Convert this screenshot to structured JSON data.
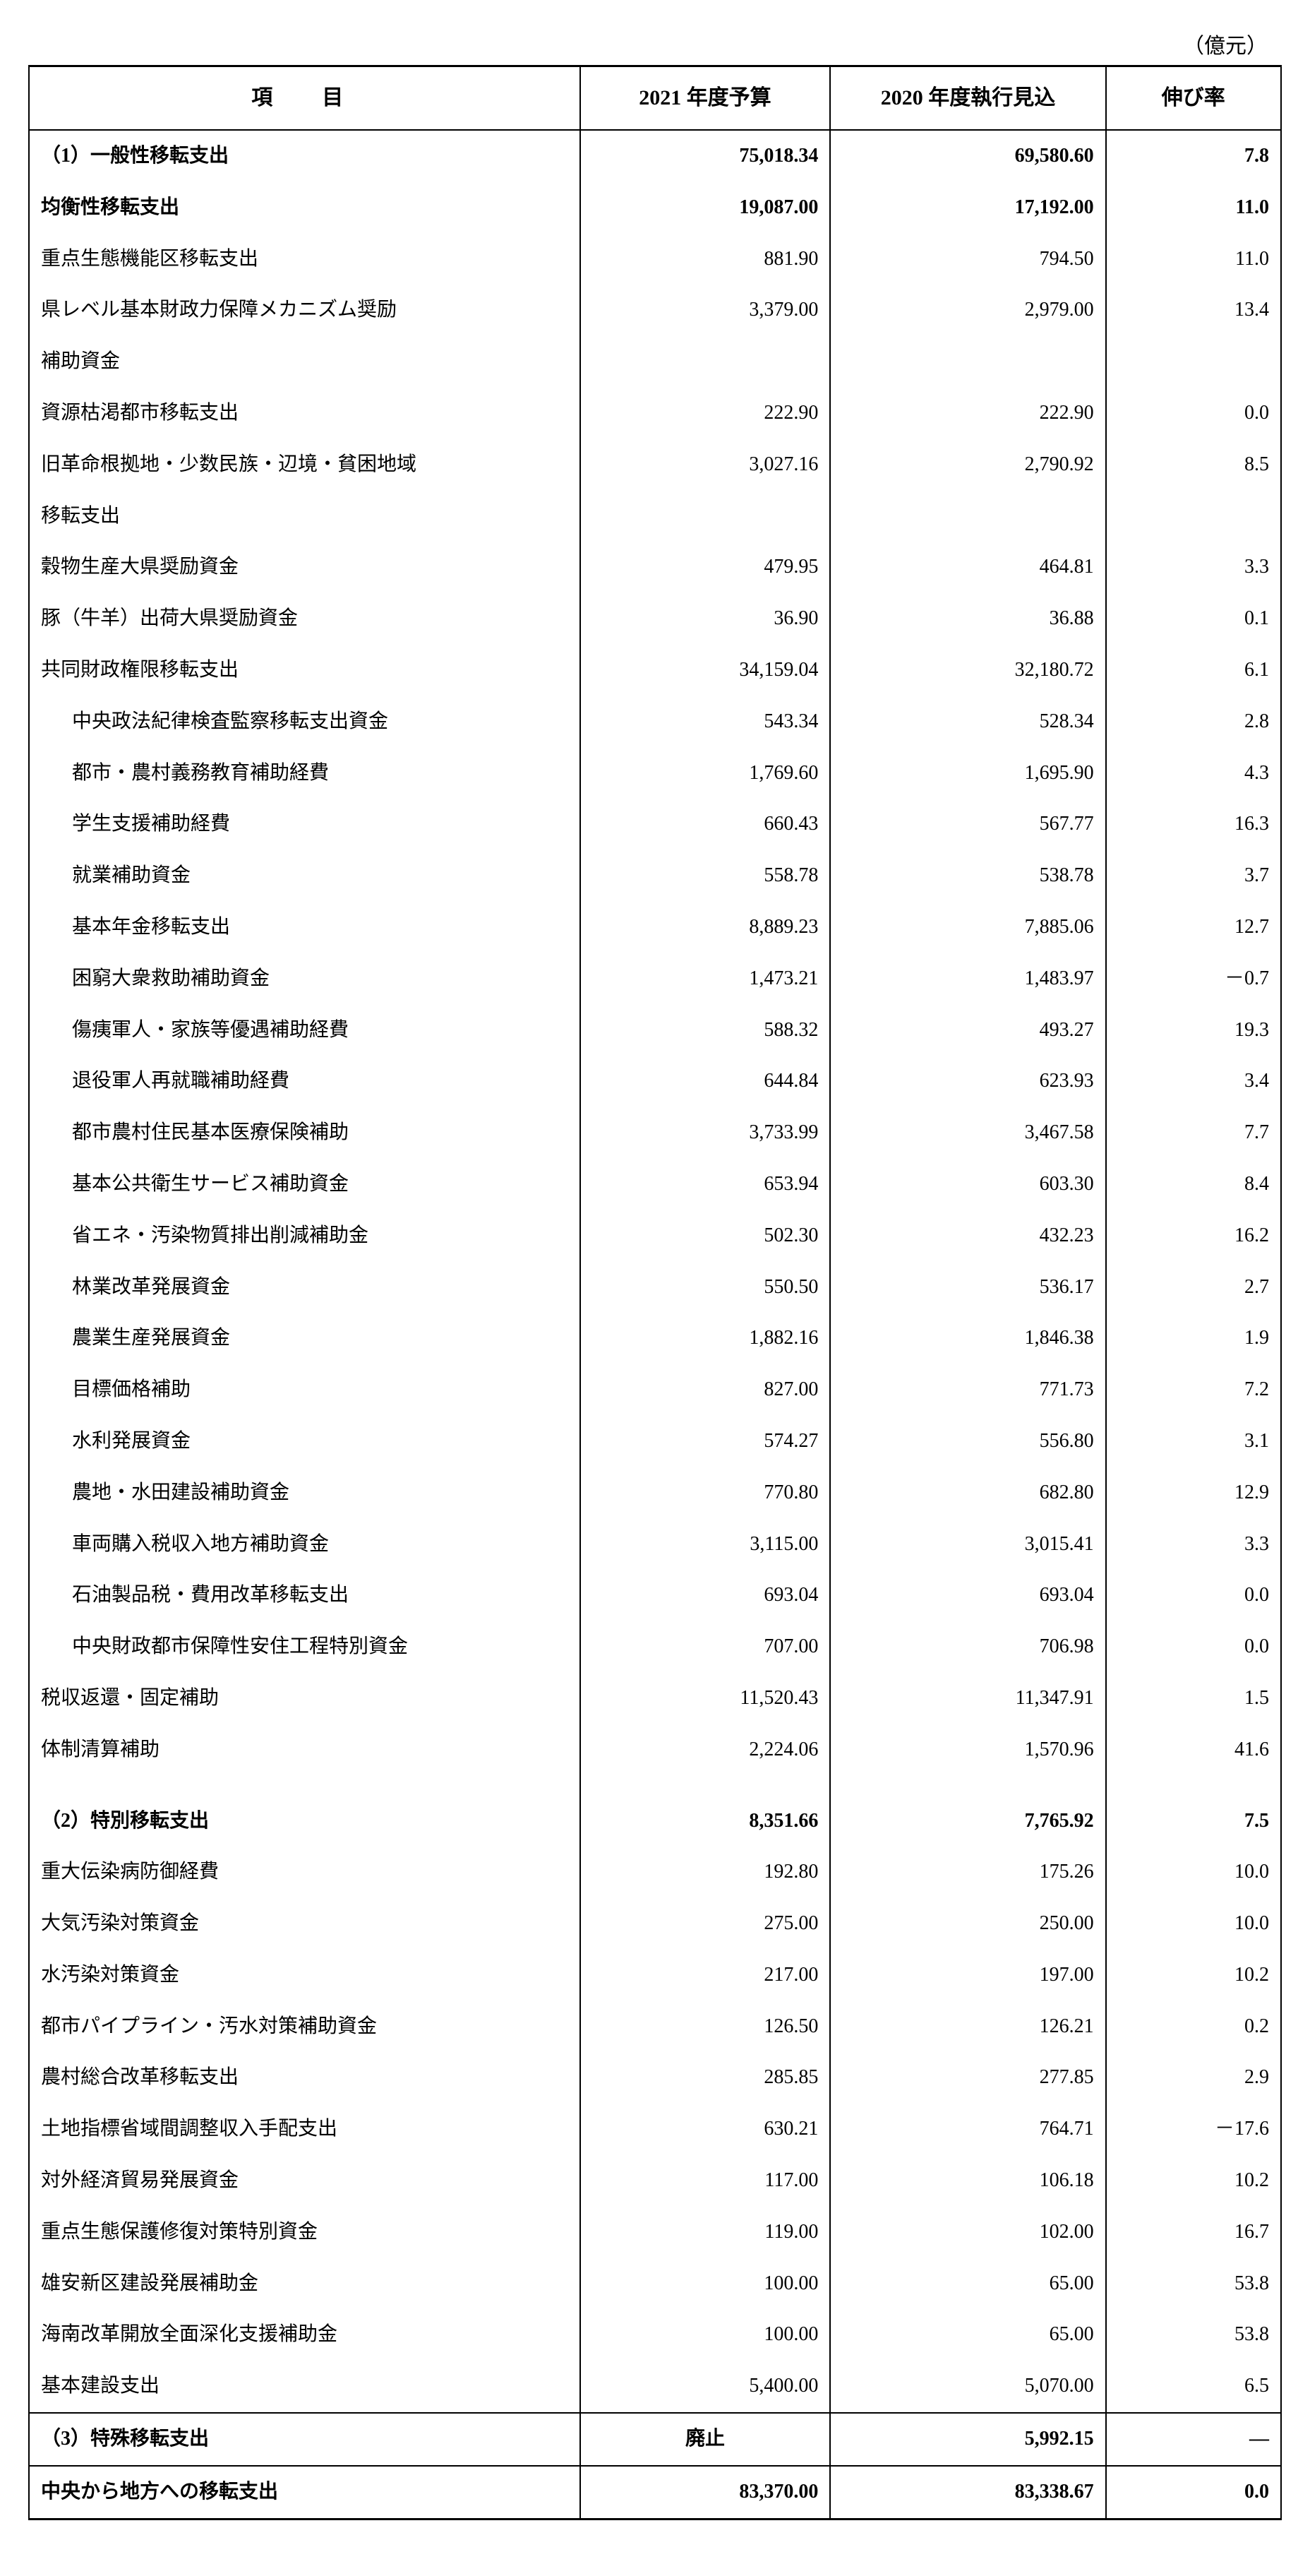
{
  "unit_label": "（億元）",
  "headers": {
    "item": "項　目",
    "budget_2021": "2021 年度予算",
    "exec_2020": "2020 年度執行見込",
    "growth": "伸び率"
  },
  "rows": [
    {
      "item": "（1）一般性移転支出",
      "b2021": "75,018.34",
      "e2020": "69,580.60",
      "rate": "7.8",
      "bold": true,
      "indent": 0,
      "section_top": true
    },
    {
      "item": "均衡性移転支出",
      "b2021": "19,087.00",
      "e2020": "17,192.00",
      "rate": "11.0",
      "bold": true,
      "indent": 0
    },
    {
      "item": "重点生態機能区移転支出",
      "b2021": "881.90",
      "e2020": "794.50",
      "rate": "11.0",
      "indent": 0
    },
    {
      "item": "県レベル基本財政力保障メカニズム奨励",
      "b2021": "3,379.00",
      "e2020": "2,979.00",
      "rate": "13.4",
      "indent": 0
    },
    {
      "item": "補助資金",
      "b2021": "",
      "e2020": "",
      "rate": "",
      "indent": 0
    },
    {
      "item": "資源枯渇都市移転支出",
      "b2021": "222.90",
      "e2020": "222.90",
      "rate": "0.0",
      "indent": 0
    },
    {
      "item": "旧革命根拠地・少数民族・辺境・貧困地域",
      "b2021": "3,027.16",
      "e2020": "2,790.92",
      "rate": "8.5",
      "indent": 0
    },
    {
      "item": "移転支出",
      "b2021": "",
      "e2020": "",
      "rate": "",
      "indent": 0
    },
    {
      "item": "穀物生産大県奨励資金",
      "b2021": "479.95",
      "e2020": "464.81",
      "rate": "3.3",
      "indent": 0
    },
    {
      "item": "豚（牛羊）出荷大県奨励資金",
      "b2021": "36.90",
      "e2020": "36.88",
      "rate": "0.1",
      "indent": 0
    },
    {
      "item": "共同財政権限移転支出",
      "b2021": "34,159.04",
      "e2020": "32,180.72",
      "rate": "6.1",
      "indent": 0
    },
    {
      "item": "中央政法紀律検査監察移転支出資金",
      "b2021": "543.34",
      "e2020": "528.34",
      "rate": "2.8",
      "indent": 2
    },
    {
      "item": "都市・農村義務教育補助経費",
      "b2021": "1,769.60",
      "e2020": "1,695.90",
      "rate": "4.3",
      "indent": 2
    },
    {
      "item": "学生支援補助経費",
      "b2021": "660.43",
      "e2020": "567.77",
      "rate": "16.3",
      "indent": 2
    },
    {
      "item": "就業補助資金",
      "b2021": "558.78",
      "e2020": "538.78",
      "rate": "3.7",
      "indent": 2
    },
    {
      "item": "基本年金移転支出",
      "b2021": "8,889.23",
      "e2020": "7,885.06",
      "rate": "12.7",
      "indent": 2
    },
    {
      "item": "困窮大衆救助補助資金",
      "b2021": "1,473.21",
      "e2020": "1,483.97",
      "rate": "－0.7",
      "indent": 2
    },
    {
      "item": "傷痍軍人・家族等優遇補助経費",
      "b2021": "588.32",
      "e2020": "493.27",
      "rate": "19.3",
      "indent": 2
    },
    {
      "item": "退役軍人再就職補助経費",
      "b2021": "644.84",
      "e2020": "623.93",
      "rate": "3.4",
      "indent": 2
    },
    {
      "item": "都市農村住民基本医療保険補助",
      "b2021": "3,733.99",
      "e2020": "3,467.58",
      "rate": "7.7",
      "indent": 2
    },
    {
      "item": "基本公共衛生サービス補助資金",
      "b2021": "653.94",
      "e2020": "603.30",
      "rate": "8.4",
      "indent": 2
    },
    {
      "item": "省エネ・汚染物質排出削減補助金",
      "b2021": "502.30",
      "e2020": "432.23",
      "rate": "16.2",
      "indent": 2
    },
    {
      "item": "林業改革発展資金",
      "b2021": "550.50",
      "e2020": "536.17",
      "rate": "2.7",
      "indent": 2
    },
    {
      "item": "農業生産発展資金",
      "b2021": "1,882.16",
      "e2020": "1,846.38",
      "rate": "1.9",
      "indent": 2
    },
    {
      "item": "目標価格補助",
      "b2021": "827.00",
      "e2020": "771.73",
      "rate": "7.2",
      "indent": 2
    },
    {
      "item": "水利発展資金",
      "b2021": "574.27",
      "e2020": "556.80",
      "rate": "3.1",
      "indent": 2
    },
    {
      "item": "農地・水田建設補助資金",
      "b2021": "770.80",
      "e2020": "682.80",
      "rate": "12.9",
      "indent": 2
    },
    {
      "item": "車両購入税収入地方補助資金",
      "b2021": "3,115.00",
      "e2020": "3,015.41",
      "rate": "3.3",
      "indent": 2
    },
    {
      "item": "石油製品税・費用改革移転支出",
      "b2021": "693.04",
      "e2020": "693.04",
      "rate": "0.0",
      "indent": 2
    },
    {
      "item": "中央財政都市保障性安住工程特別資金",
      "b2021": "707.00",
      "e2020": "706.98",
      "rate": "0.0",
      "indent": 2
    },
    {
      "item": "税収返還・固定補助",
      "b2021": "11,520.43",
      "e2020": "11,347.91",
      "rate": "1.5",
      "indent": 0
    },
    {
      "item": "体制清算補助",
      "b2021": "2,224.06",
      "e2020": "1,570.96",
      "rate": "41.6",
      "indent": 0
    },
    {
      "item": "",
      "b2021": "",
      "e2020": "",
      "rate": "",
      "indent": 0
    },
    {
      "item": "（2）特別移転支出",
      "b2021": "8,351.66",
      "e2020": "7,765.92",
      "rate": "7.5",
      "bold": true,
      "indent": 0
    },
    {
      "item": "重大伝染病防御経費",
      "b2021": "192.80",
      "e2020": "175.26",
      "rate": "10.0",
      "indent": 0
    },
    {
      "item": "大気汚染対策資金",
      "b2021": "275.00",
      "e2020": "250.00",
      "rate": "10.0",
      "indent": 0
    },
    {
      "item": "水汚染対策資金",
      "b2021": "217.00",
      "e2020": "197.00",
      "rate": "10.2",
      "indent": 0
    },
    {
      "item": "都市パイプライン・汚水対策補助資金",
      "b2021": "126.50",
      "e2020": "126.21",
      "rate": "0.2",
      "indent": 0
    },
    {
      "item": "農村総合改革移転支出",
      "b2021": "285.85",
      "e2020": "277.85",
      "rate": "2.9",
      "indent": 0
    },
    {
      "item": "土地指標省域間調整収入手配支出",
      "b2021": "630.21",
      "e2020": "764.71",
      "rate": "－17.6",
      "indent": 0
    },
    {
      "item": "対外経済貿易発展資金",
      "b2021": "117.00",
      "e2020": "106.18",
      "rate": "10.2",
      "indent": 0
    },
    {
      "item": "重点生態保護修復対策特別資金",
      "b2021": "119.00",
      "e2020": "102.00",
      "rate": "16.7",
      "indent": 0
    },
    {
      "item": "雄安新区建設発展補助金",
      "b2021": "100.00",
      "e2020": "65.00",
      "rate": "53.8",
      "indent": 0
    },
    {
      "item": "海南改革開放全面深化支援補助金",
      "b2021": "100.00",
      "e2020": "65.00",
      "rate": "53.8",
      "indent": 0
    },
    {
      "item": "基本建設支出",
      "b2021": "5,400.00",
      "e2020": "5,070.00",
      "rate": "6.5",
      "indent": 0,
      "section_bottom": true
    },
    {
      "item": "（3）特殊移転支出",
      "b2021": "廃止",
      "e2020": "5,992.15",
      "rate": "—",
      "bold": true,
      "indent": 0,
      "b2021_center": true,
      "section_bottom": true
    },
    {
      "item": "中央から地方への移転支出",
      "b2021": "83,370.00",
      "e2020": "83,338.67",
      "rate": "0.0",
      "bold": true,
      "indent": 0
    }
  ],
  "styling": {
    "font_family": "serif",
    "base_font_size": 28,
    "header_font_size": 30,
    "text_color": "#000000",
    "background_color": "#ffffff",
    "border_color": "#000000",
    "outer_border_width": 3,
    "inner_border_width": 2,
    "col_widths_pct": [
      44,
      20,
      22,
      14
    ]
  }
}
